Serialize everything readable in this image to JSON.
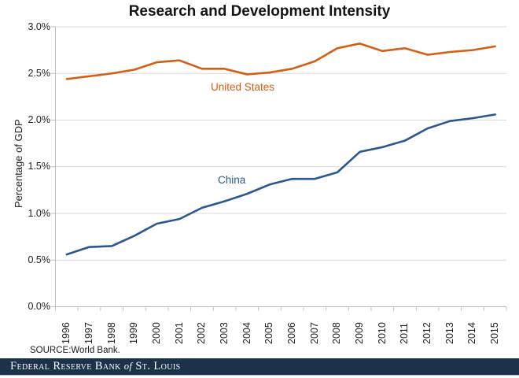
{
  "title": "Research and Development Intensity",
  "chart_data": {
    "type": "line",
    "title": "Research and Development Intensity",
    "xlabel": "",
    "ylabel": "Percentage of GDP",
    "ylim": [
      0.0,
      3.0
    ],
    "y_tick_labels": [
      "3.0%",
      "2.5%",
      "2.0%",
      "1.5%",
      "1.0%",
      "0.5%",
      "0.0%"
    ],
    "y_tick_values": [
      3.0,
      2.5,
      2.0,
      1.5,
      1.0,
      0.5,
      0.0
    ],
    "grid": "horizontal-on",
    "legend": "inline-labels",
    "categories": [
      "1996",
      "1997",
      "1998",
      "1999",
      "2000",
      "2001",
      "2002",
      "2003",
      "2004",
      "2005",
      "2006",
      "2007",
      "2008",
      "2009",
      "2010",
      "2011",
      "2012",
      "2013",
      "2014",
      "2015"
    ],
    "series": [
      {
        "name": "United States",
        "color": "#D25F14",
        "values": [
          2.44,
          2.47,
          2.5,
          2.54,
          2.62,
          2.64,
          2.55,
          2.55,
          2.49,
          2.51,
          2.55,
          2.63,
          2.77,
          2.82,
          2.74,
          2.77,
          2.7,
          2.73,
          2.75,
          2.79
        ]
      },
      {
        "name": "China",
        "color": "#2A5792",
        "values": [
          0.56,
          0.64,
          0.65,
          0.76,
          0.89,
          0.94,
          1.06,
          1.13,
          1.21,
          1.31,
          1.37,
          1.37,
          1.44,
          1.66,
          1.71,
          1.78,
          1.91,
          1.99,
          2.02,
          2.06
        ]
      }
    ],
    "colors": {
      "grid": "#D9D9D9",
      "axis": "#BFBFBF"
    }
  },
  "source": {
    "text": "SOURCE:World Bank."
  },
  "footer": {
    "part1": "Federal Reserve Bank",
    "of": "of",
    "part2": "St. Louis",
    "background": "#1C324A"
  }
}
